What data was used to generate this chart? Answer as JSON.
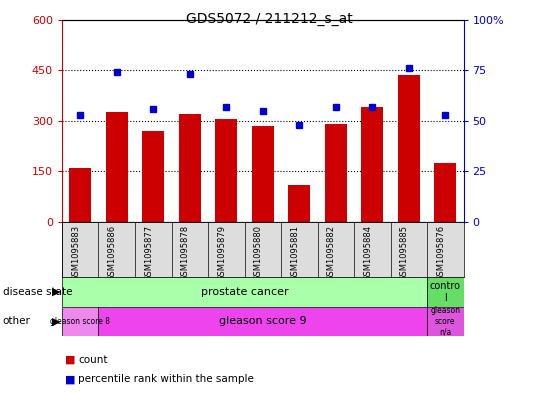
{
  "title": "GDS5072 / 211212_s_at",
  "samples": [
    "GSM1095883",
    "GSM1095886",
    "GSM1095877",
    "GSM1095878",
    "GSM1095879",
    "GSM1095880",
    "GSM1095881",
    "GSM1095882",
    "GSM1095884",
    "GSM1095885",
    "GSM1095876"
  ],
  "counts": [
    160,
    325,
    270,
    320,
    305,
    285,
    110,
    290,
    340,
    435,
    175
  ],
  "percentiles": [
    53,
    74,
    56,
    73,
    57,
    55,
    48,
    57,
    57,
    76,
    53
  ],
  "ylim_left": [
    0,
    600
  ],
  "ylim_right": [
    0,
    100
  ],
  "yticks_left": [
    0,
    150,
    300,
    450,
    600
  ],
  "yticks_right": [
    0,
    25,
    50,
    75,
    100
  ],
  "bar_color": "#cc0000",
  "dot_color": "#0000cc",
  "background_color": "#ffffff",
  "pc_color": "#aaffaa",
  "ctrl_color": "#66dd66",
  "g8_color": "#ee88ee",
  "g9_color": "#ee44ee",
  "gna_color": "#dd55dd",
  "axis_color_left": "#cc0000",
  "axis_color_right": "#0000cc"
}
